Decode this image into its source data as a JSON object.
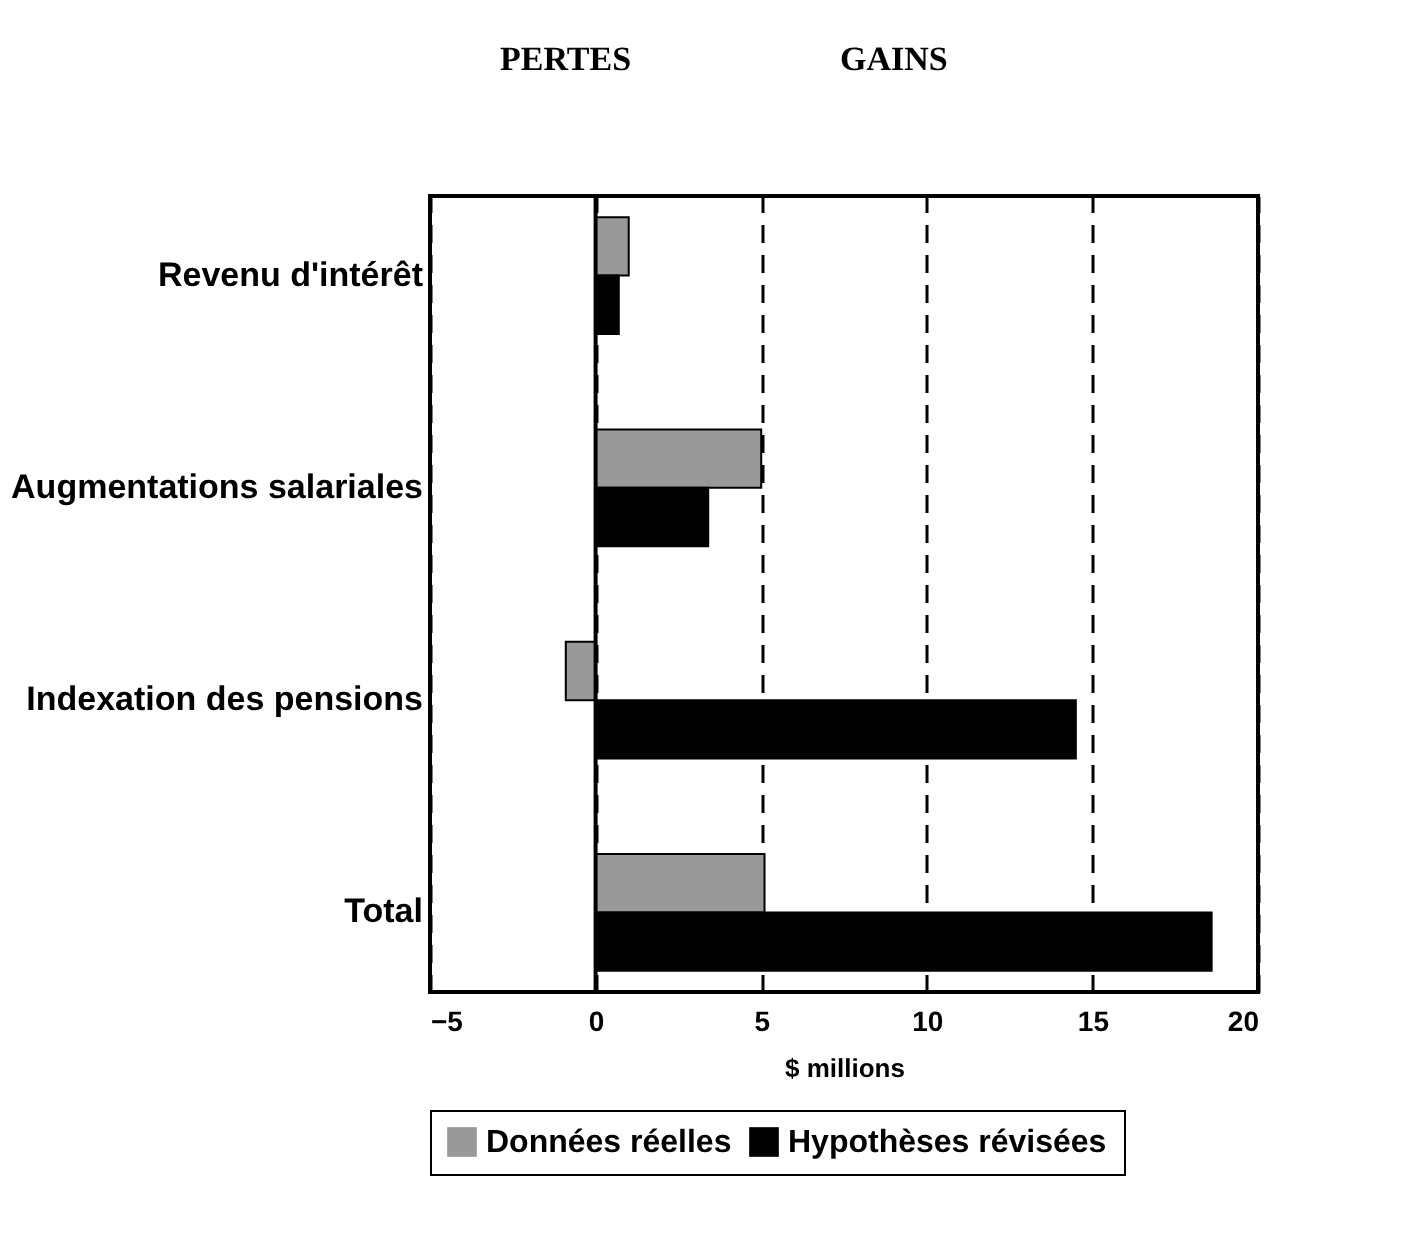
{
  "chart_data": {
    "type": "bar",
    "orientation": "horizontal",
    "annotations": [
      "PERTES",
      "GAINS"
    ],
    "xlabel": "$ millions",
    "categories": [
      "Revenu d'intérêt",
      "Augmentations salariales",
      "Indexation des pensions",
      "Total"
    ],
    "series": [
      {
        "name": "Données réelles",
        "color": "#999999",
        "values": [
          1.0,
          5.0,
          -0.9,
          5.1
        ]
      },
      {
        "name": "Hypothèses révisées",
        "color": "#000000",
        "values": [
          0.7,
          3.4,
          14.5,
          18.6
        ]
      }
    ],
    "xlim": [
      -5,
      20
    ],
    "xticks": [
      -5,
      0,
      5,
      10,
      15,
      20
    ],
    "grid": "x",
    "ref_lines": [
      {
        "axis": "x",
        "value": 0,
        "line_style": "solid"
      }
    ],
    "legend": "bottom"
  }
}
